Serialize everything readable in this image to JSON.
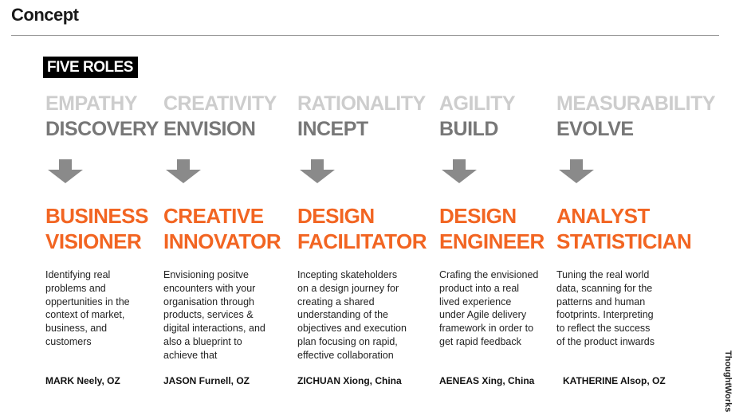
{
  "header": {
    "title": "Concept",
    "badge": "FIVE ROLES"
  },
  "roles": [
    {
      "quality": "EMPATHY",
      "phase": "DISCOVERY",
      "role_line1": "BUSINESS",
      "role_line2": "VISIONER",
      "description": "Identifying real problems and oppertunities in the context of market, business, and customers",
      "person": "MARK Neely, OZ"
    },
    {
      "quality": "CREATIVITY",
      "phase": "ENVISION",
      "role_line1": "CREATIVE",
      "role_line2": "INNOVATOR",
      "description": "Envisioning positve encounters with your organisation through products, services & digital interactions, and also a blueprint to achieve that",
      "person": "JASON Furnell, OZ"
    },
    {
      "quality": "RATIONALITY",
      "phase": "INCEPT",
      "role_line1": "DESIGN",
      "role_line2": "FACILITATOR",
      "description": "Incepting skateholders on a design journey for creating a shared understanding of the objectives and execution plan focusing on rapid, effective collaboration",
      "person": "ZICHUAN Xiong, China"
    },
    {
      "quality": "AGILITY",
      "phase": "BUILD",
      "role_line1": "DESIGN",
      "role_line2": "ENGINEER",
      "description": "Crafing the envisioned product into a real lived experience under Agile delivery framework in order to get rapid feedback",
      "person": "AENEAS Xing, China"
    },
    {
      "quality": "MEASURABILITY",
      "phase": "EVOLVE",
      "role_line1": "ANALYST",
      "role_line2": "STATISTICIAN",
      "description": "Tuning the real world data, scanning for the patterns and human footprints. Interpreting to reflect the success of the product inwards",
      "person": "KATHERINE Alsop, OZ"
    }
  ],
  "footer": {
    "brand": "ThoughtWorks"
  },
  "colors": {
    "accent": "#f26522",
    "phase": "#777777",
    "quality": "#cdcdcd"
  },
  "icons": {
    "arrow": "arrow-down-icon"
  }
}
